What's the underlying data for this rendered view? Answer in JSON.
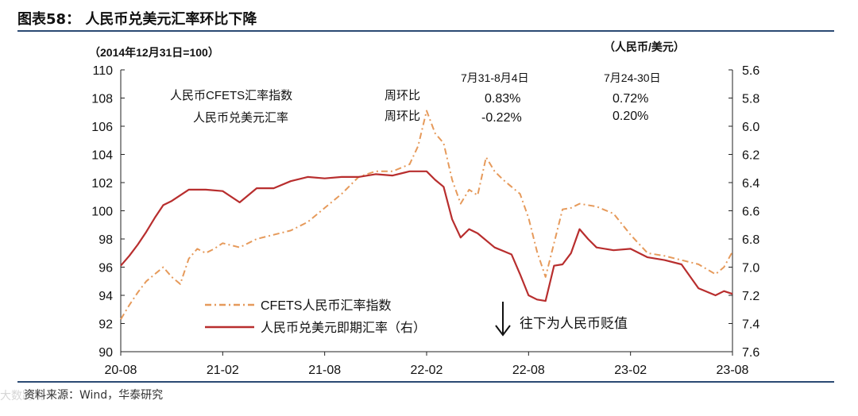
{
  "title": "图表58： 人民币兑美元汇率环比下降",
  "source": "资料来源：Wind，华泰研究",
  "watermark": "大数跨境",
  "chart_data": {
    "type": "line",
    "left_axis_label": "（2014年12月31日=100）",
    "right_axis_label": "（人民币/美元）",
    "left_ylim": [
      90,
      110
    ],
    "left_ticks": [
      "110",
      "108",
      "106",
      "104",
      "102",
      "100",
      "98",
      "96",
      "94",
      "92",
      "90"
    ],
    "right_ylim": [
      5.6,
      7.6
    ],
    "right_inverted": true,
    "right_ticks": [
      "5.6",
      "5.8",
      "6.0",
      "6.2",
      "6.4",
      "6.6",
      "6.8",
      "7.0",
      "7.2",
      "7.4",
      "7.6"
    ],
    "x_ticks": [
      "20-08",
      "21-02",
      "21-08",
      "22-02",
      "22-08",
      "23-02",
      "23-08"
    ],
    "x_range_months": [
      0,
      36
    ],
    "grid": false,
    "legend_position": "bottom-center",
    "series": [
      {
        "name": "CFETS人民币汇率指数",
        "axis": "left",
        "color": "#e69a5b",
        "style": "dashdot",
        "x": [
          0,
          0.5,
          1,
          1.5,
          2,
          2.5,
          3,
          3.5,
          4,
          4.5,
          5,
          5.5,
          6,
          7,
          8,
          9,
          10,
          11,
          12,
          13,
          14,
          15,
          16,
          17,
          17.5,
          18,
          18.5,
          19,
          19.5,
          20,
          20.5,
          21,
          21.5,
          22,
          22.5,
          23,
          23.5,
          24,
          24.5,
          25,
          26,
          26.5,
          27,
          27.5,
          28,
          29,
          30,
          31,
          32,
          33,
          34,
          35,
          35.5,
          36
        ],
        "y": [
          92.3,
          93.3,
          94.2,
          95.0,
          95.5,
          96.0,
          95.3,
          94.8,
          96.6,
          97.3,
          97.0,
          97.3,
          97.7,
          97.4,
          98.0,
          98.3,
          98.6,
          99.2,
          100.2,
          101.2,
          102.4,
          102.8,
          102.8,
          103.3,
          104.6,
          107.1,
          105.5,
          104.8,
          102.2,
          100.5,
          101.5,
          101.1,
          103.8,
          102.8,
          102.2,
          101.7,
          101.2,
          99.5,
          97.1,
          95.3,
          100.1,
          100.2,
          100.5,
          100.4,
          100.3,
          99.8,
          98.3,
          97.0,
          96.8,
          96.5,
          96.2,
          95.5,
          96.0,
          97.1
        ]
      },
      {
        "name": "人民币兑美元即期汇率（右）",
        "axis": "right",
        "color": "#b82e2e",
        "style": "solid",
        "x": [
          0,
          0.5,
          1,
          1.5,
          2,
          2.5,
          3,
          4,
          5,
          6,
          7,
          8,
          9,
          10,
          11,
          12,
          13,
          14,
          15,
          16,
          17,
          18,
          18.5,
          19,
          19.5,
          20,
          20.5,
          21,
          22,
          23,
          23.5,
          24,
          24.5,
          25,
          25.5,
          26,
          26.5,
          27,
          27.5,
          28,
          29,
          30,
          31,
          32,
          33,
          34,
          35,
          35.5,
          36
        ],
        "y": [
          6.99,
          6.92,
          6.84,
          6.75,
          6.65,
          6.56,
          6.53,
          6.45,
          6.45,
          6.46,
          6.54,
          6.44,
          6.44,
          6.39,
          6.36,
          6.37,
          6.36,
          6.36,
          6.34,
          6.35,
          6.32,
          6.32,
          6.38,
          6.43,
          6.66,
          6.79,
          6.73,
          6.76,
          6.86,
          6.91,
          7.05,
          7.2,
          7.23,
          7.24,
          6.99,
          6.98,
          6.9,
          6.73,
          6.8,
          6.86,
          6.88,
          6.87,
          6.93,
          6.95,
          6.98,
          7.15,
          7.2,
          7.17,
          7.19
        ]
      }
    ],
    "annotations": {
      "col1_header": "7月31-8月4日",
      "col2_header": "7月24-30日",
      "row1_label": "人民币CFETS汇率指数",
      "row1_mid": "周环比",
      "row1_v1": "0.83%",
      "row1_v2": "0.72%",
      "row2_label": "人民币兑美元汇率",
      "row2_mid": "周环比",
      "row2_v1": "-0.22%",
      "row2_v2": "0.20%",
      "arrow_note": "往下为人民币贬值"
    }
  }
}
